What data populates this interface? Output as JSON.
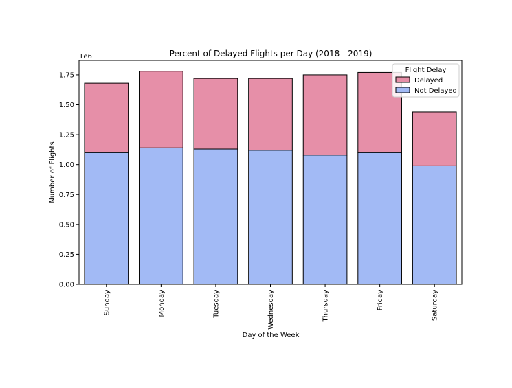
{
  "chart_data": {
    "type": "bar",
    "stacked": true,
    "title": "Percent of Delayed Flights per Day (2018 - 2019)",
    "xlabel": "Day of the Week",
    "ylabel": "Number of Flights",
    "y_offset_label": "1e6",
    "ylim": [
      0,
      1.87
    ],
    "yticks": [
      "0.00",
      "0.25",
      "0.50",
      "0.75",
      "1.00",
      "1.25",
      "1.50",
      "1.75"
    ],
    "categories": [
      "Sunday",
      "Monday",
      "Tuesday",
      "Wednesday",
      "Thursday",
      "Friday",
      "Saturday"
    ],
    "series": [
      {
        "name": "Not Delayed",
        "color": "#a2baf5",
        "values": [
          1.1,
          1.14,
          1.13,
          1.12,
          1.08,
          1.1,
          0.99
        ]
      },
      {
        "name": "Delayed",
        "color": "#e68fa8",
        "values": [
          0.58,
          0.64,
          0.59,
          0.6,
          0.67,
          0.67,
          0.45
        ]
      }
    ],
    "legend": {
      "title": "Flight Delay",
      "placement": "top-right",
      "entries": [
        "Delayed",
        "Not Delayed"
      ]
    },
    "grid": false
  }
}
